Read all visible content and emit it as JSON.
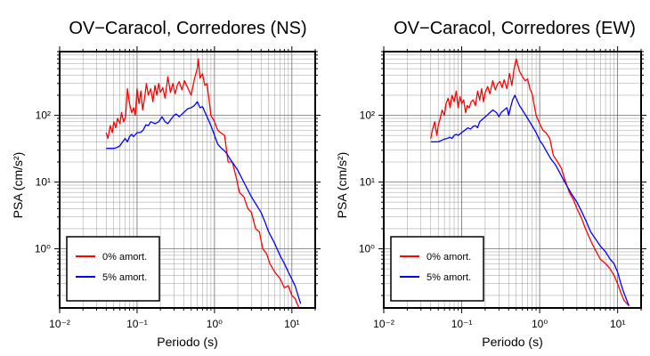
{
  "chart_data": [
    {
      "type": "line",
      "title": "OV−Caracol, Corredores (NS)",
      "xlabel": "Periodo (s)",
      "ylabel": "PSA (cm/s²)",
      "xscale": "log",
      "yscale": "log",
      "xlim": [
        0.01,
        20
      ],
      "ylim": [
        0.13,
        900
      ],
      "grid": true,
      "legend_position": "bottom-left",
      "x_tick_labels": [
        "10⁻²",
        "10⁻¹",
        "10⁰",
        "10¹"
      ],
      "y_tick_labels": [
        "10⁰",
        "10¹",
        "10²"
      ],
      "series": [
        {
          "name": "0% amort.",
          "color": "#ff0000",
          "x": [
            0.04,
            0.042,
            0.045,
            0.048,
            0.05,
            0.053,
            0.056,
            0.06,
            0.063,
            0.067,
            0.071,
            0.075,
            0.08,
            0.085,
            0.09,
            0.095,
            0.1,
            0.106,
            0.112,
            0.118,
            0.125,
            0.132,
            0.14,
            0.15,
            0.16,
            0.17,
            0.18,
            0.19,
            0.2,
            0.215,
            0.23,
            0.25,
            0.27,
            0.29,
            0.31,
            0.33,
            0.35,
            0.38,
            0.41,
            0.45,
            0.5,
            0.55,
            0.6,
            0.62,
            0.65,
            0.7,
            0.75,
            0.8,
            0.9,
            1.0,
            1.1,
            1.2,
            1.35,
            1.5,
            1.7,
            1.9,
            2.1,
            2.4,
            2.7,
            3.0,
            3.4,
            3.8,
            4.2,
            4.7,
            5.2,
            6.0,
            7.0,
            8.0,
            9.0,
            10.0,
            11.0,
            12.0,
            13.0
          ],
          "values": [
            55,
            45,
            70,
            55,
            80,
            65,
            90,
            75,
            110,
            80,
            95,
            250,
            150,
            110,
            130,
            100,
            250,
            150,
            230,
            120,
            180,
            300,
            200,
            250,
            160,
            280,
            200,
            300,
            220,
            260,
            180,
            380,
            220,
            300,
            210,
            280,
            320,
            240,
            330,
            260,
            200,
            350,
            500,
            700,
            360,
            420,
            280,
            300,
            100,
            80,
            60,
            55,
            50,
            20,
            20,
            12,
            7,
            6,
            4,
            3.5,
            2,
            1.8,
            1,
            0.85,
            0.6,
            0.45,
            0.36,
            0.26,
            0.28,
            0.2,
            0.18,
            0.14,
            0.12
          ]
        },
        {
          "name": "5% amort.",
          "color": "#0000ff",
          "x": [
            0.04,
            0.05,
            0.055,
            0.06,
            0.065,
            0.07,
            0.075,
            0.08,
            0.085,
            0.09,
            0.1,
            0.11,
            0.12,
            0.13,
            0.14,
            0.15,
            0.17,
            0.19,
            0.21,
            0.23,
            0.25,
            0.28,
            0.3,
            0.32,
            0.35,
            0.4,
            0.45,
            0.5,
            0.55,
            0.6,
            0.65,
            0.7,
            0.8,
            0.9,
            1.0,
            1.1,
            1.2,
            1.4,
            1.6,
            1.8,
            2.0,
            2.5,
            3.0,
            3.5,
            4.0,
            4.5,
            5.0,
            6.0,
            7.0,
            8.0,
            9.0,
            10.0,
            11.0,
            12.0,
            13.0
          ],
          "values": [
            32,
            32,
            33,
            35,
            40,
            45,
            40,
            48,
            52,
            48,
            55,
            55,
            60,
            72,
            70,
            80,
            75,
            80,
            95,
            80,
            75,
            90,
            100,
            105,
            95,
            110,
            125,
            130,
            140,
            160,
            130,
            135,
            95,
            70,
            50,
            37,
            33,
            28,
            22,
            18,
            15,
            9,
            6,
            4.5,
            3.5,
            2.5,
            1.8,
            1.2,
            0.8,
            0.6,
            0.45,
            0.35,
            0.28,
            0.2,
            0.15
          ]
        }
      ]
    },
    {
      "type": "line",
      "title": "OV−Caracol, Corredores (EW)",
      "xlabel": "Periodo (s)",
      "ylabel": "PSA (cm/s²)",
      "xscale": "log",
      "yscale": "log",
      "xlim": [
        0.01,
        20
      ],
      "ylim": [
        0.13,
        900
      ],
      "grid": true,
      "legend_position": "bottom-left",
      "x_tick_labels": [
        "10⁻²",
        "10⁻¹",
        "10⁰",
        "10¹"
      ],
      "y_tick_labels": [
        "10⁰",
        "10¹",
        "10²"
      ],
      "series": [
        {
          "name": "0% amort.",
          "color": "#ff0000",
          "x": [
            0.04,
            0.042,
            0.045,
            0.048,
            0.05,
            0.053,
            0.056,
            0.06,
            0.063,
            0.067,
            0.071,
            0.075,
            0.08,
            0.085,
            0.09,
            0.095,
            0.1,
            0.106,
            0.112,
            0.118,
            0.125,
            0.132,
            0.14,
            0.15,
            0.16,
            0.17,
            0.18,
            0.19,
            0.2,
            0.215,
            0.23,
            0.25,
            0.27,
            0.29,
            0.31,
            0.33,
            0.35,
            0.38,
            0.41,
            0.44,
            0.47,
            0.5,
            0.55,
            0.6,
            0.65,
            0.7,
            0.75,
            0.8,
            0.9,
            1.0,
            1.1,
            1.2,
            1.35,
            1.5,
            1.7,
            1.9,
            2.1,
            2.4,
            2.7,
            3.0,
            3.4,
            3.8,
            4.2,
            4.7,
            5.2,
            6.0,
            7.0,
            8.0,
            9.0,
            10.0,
            11.0,
            12.0,
            14.0
          ],
          "values": [
            45,
            60,
            80,
            50,
            70,
            90,
            120,
            100,
            150,
            180,
            130,
            200,
            160,
            230,
            130,
            190,
            150,
            170,
            110,
            140,
            130,
            160,
            170,
            140,
            230,
            170,
            250,
            160,
            220,
            270,
            210,
            330,
            240,
            300,
            320,
            260,
            340,
            250,
            420,
            280,
            500,
            700,
            460,
            380,
            330,
            350,
            250,
            210,
            100,
            75,
            60,
            55,
            45,
            25,
            20,
            16,
            11,
            7,
            5.5,
            4,
            3,
            2.1,
            1.6,
            1.2,
            0.95,
            0.7,
            0.6,
            0.5,
            0.4,
            0.3,
            0.22,
            0.17,
            0.14
          ]
        },
        {
          "name": "5% amort.",
          "color": "#0000ff",
          "x": [
            0.04,
            0.05,
            0.055,
            0.06,
            0.065,
            0.07,
            0.075,
            0.08,
            0.085,
            0.09,
            0.1,
            0.11,
            0.12,
            0.13,
            0.14,
            0.15,
            0.16,
            0.17,
            0.19,
            0.21,
            0.23,
            0.25,
            0.28,
            0.3,
            0.32,
            0.35,
            0.38,
            0.4,
            0.43,
            0.45,
            0.48,
            0.5,
            0.55,
            0.6,
            0.7,
            0.8,
            0.9,
            1.0,
            1.1,
            1.2,
            1.4,
            1.6,
            1.8,
            2.0,
            2.5,
            3.0,
            3.5,
            4.0,
            4.5,
            5.0,
            6.0,
            7.0,
            8.0,
            9.0,
            10.0,
            11.0,
            12.0,
            14.0
          ],
          "values": [
            40,
            40,
            42,
            44,
            45,
            47,
            45,
            50,
            52,
            50,
            55,
            60,
            65,
            62,
            68,
            70,
            65,
            80,
            90,
            100,
            110,
            120,
            110,
            95,
            110,
            120,
            130,
            100,
            140,
            170,
            200,
            180,
            140,
            120,
            90,
            70,
            55,
            42,
            36,
            30,
            22,
            18,
            14,
            11,
            7,
            5,
            3.5,
            2.5,
            1.8,
            1.5,
            1.1,
            0.9,
            0.7,
            0.6,
            0.45,
            0.3,
            0.22,
            0.14
          ]
        }
      ]
    }
  ]
}
